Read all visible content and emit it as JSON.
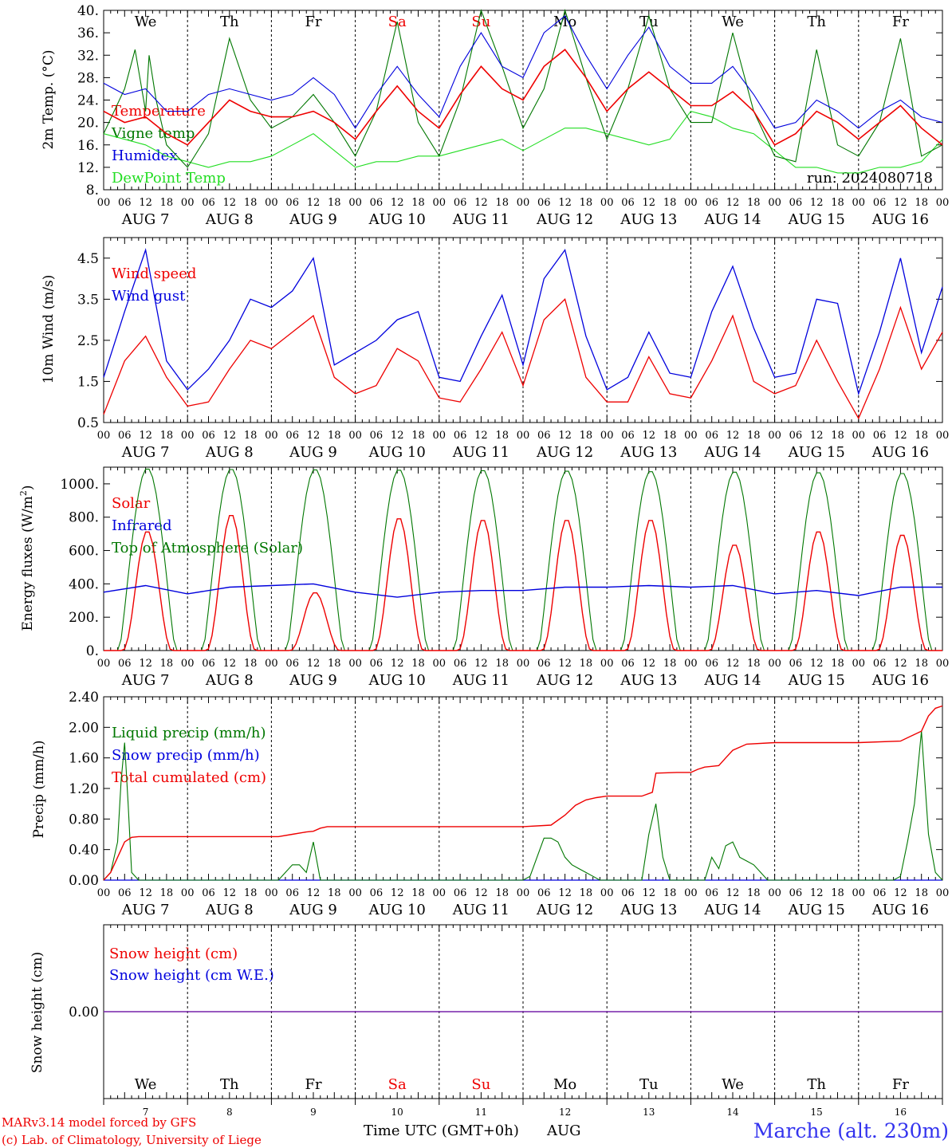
{
  "days": [
    {
      "weekday": "We",
      "label": "AUG  7",
      "num": "7",
      "weekend": false
    },
    {
      "weekday": "Th",
      "label": "AUG  8",
      "num": "8",
      "weekend": false
    },
    {
      "weekday": "Fr",
      "label": "AUG  9",
      "num": "9",
      "weekend": false
    },
    {
      "weekday": "Sa",
      "label": "AUG 10",
      "num": "10",
      "weekend": true
    },
    {
      "weekday": "Su",
      "label": "AUG 11",
      "num": "11",
      "weekend": true
    },
    {
      "weekday": "Mo",
      "label": "AUG 12",
      "num": "12",
      "weekend": false
    },
    {
      "weekday": "Tu",
      "label": "AUG 13",
      "num": "13",
      "weekend": false
    },
    {
      "weekday": "We",
      "label": "AUG 14",
      "num": "14",
      "weekend": false
    },
    {
      "weekday": "Th",
      "label": "AUG 15",
      "num": "15",
      "weekend": false
    },
    {
      "weekday": "Fr",
      "label": "AUG 16",
      "num": "16",
      "weekend": false
    }
  ],
  "hour_ticks": [
    "00",
    "06",
    "12",
    "18"
  ],
  "colors": {
    "red": "#ee0000",
    "green": "#007700",
    "blue": "#0000dd",
    "lightgreen": "#22dd22",
    "purple": "#7722aa",
    "weekend": "#ee0000"
  },
  "run_label": "run: 2024080718",
  "footer": {
    "model": "MARv3.14 model forced by GFS",
    "lab": "(c) Lab. of Climatology, University of Liege",
    "xaxis": "Time UTC (GMT+0h)",
    "month": "AUG",
    "station": "Marche (alt. 230m)"
  },
  "chart_data": [
    {
      "type": "line",
      "ylabel": "2m Temp. (°C)",
      "ylim": [
        8,
        40
      ],
      "yticks": [
        "8.",
        "12.",
        "16.",
        "20.",
        "24.",
        "28.",
        "32.",
        "36.",
        "40."
      ],
      "grid": false,
      "x_unit": "hours since AUG 7 00 UTC",
      "series": [
        {
          "name": "Temperature",
          "color": "#ee0000",
          "x": [
            0,
            6,
            12,
            18,
            24,
            30,
            36,
            42,
            48,
            54,
            60,
            66,
            72,
            78,
            84,
            90,
            96,
            102,
            108,
            114,
            120,
            126,
            132,
            138,
            144,
            150,
            156,
            162,
            168,
            174,
            180,
            186,
            192,
            198,
            204,
            210,
            216,
            222,
            228,
            234,
            240
          ],
          "y": [
            22,
            20,
            21,
            18,
            16,
            20,
            24,
            22,
            21,
            21,
            22,
            20,
            17,
            22,
            26.5,
            22,
            19,
            25,
            30,
            26,
            24,
            30,
            33,
            28,
            22,
            26,
            29,
            26,
            23,
            23,
            25.5,
            22,
            16,
            18,
            22,
            20,
            17,
            20,
            23,
            19,
            16
          ]
        },
        {
          "name": "Vigne temp",
          "color": "#007700",
          "x": [
            0,
            6,
            9,
            12,
            13,
            15,
            18,
            24,
            30,
            36,
            42,
            48,
            54,
            60,
            66,
            72,
            78,
            84,
            90,
            96,
            102,
            108,
            114,
            120,
            126,
            132,
            138,
            144,
            150,
            156,
            162,
            168,
            174,
            180,
            186,
            192,
            198,
            204,
            210,
            216,
            222,
            228,
            234,
            240
          ],
          "y": [
            18,
            26,
            33,
            22,
            32,
            24,
            16,
            12,
            18,
            35,
            24,
            19,
            21,
            25,
            20,
            14,
            22,
            38,
            20,
            14,
            24,
            40,
            30,
            19,
            26,
            40,
            28,
            17,
            26,
            39,
            26,
            20,
            20,
            36,
            22,
            14,
            13,
            33,
            16,
            14,
            20,
            35,
            14,
            16
          ]
        },
        {
          "name": "Humidex",
          "color": "#0000dd",
          "x": [
            0,
            6,
            12,
            18,
            24,
            30,
            36,
            42,
            48,
            54,
            60,
            66,
            72,
            78,
            84,
            90,
            96,
            102,
            108,
            114,
            120,
            126,
            132,
            138,
            144,
            150,
            156,
            162,
            168,
            174,
            180,
            186,
            192,
            198,
            204,
            210,
            216,
            222,
            228,
            234,
            240
          ],
          "y": [
            27,
            25,
            26,
            22,
            22,
            25,
            26,
            25,
            24,
            25,
            28,
            25,
            19,
            25,
            30,
            25,
            21,
            30,
            36,
            30,
            28,
            36,
            39,
            32,
            26,
            32,
            37,
            30,
            27,
            27,
            30,
            25,
            19,
            20,
            24,
            22,
            19,
            22,
            24,
            21,
            20
          ]
        },
        {
          "name": "DewPoint Temp",
          "color": "#22dd22",
          "x": [
            0,
            6,
            12,
            18,
            24,
            30,
            36,
            42,
            48,
            54,
            60,
            66,
            72,
            78,
            84,
            90,
            96,
            102,
            108,
            114,
            120,
            126,
            132,
            138,
            144,
            150,
            156,
            162,
            168,
            174,
            180,
            186,
            192,
            198,
            204,
            210,
            216,
            222,
            228,
            234,
            240
          ],
          "y": [
            18,
            17,
            16,
            14,
            13,
            12,
            13,
            13,
            14,
            16,
            18,
            15,
            12,
            13,
            13,
            14,
            14,
            15,
            16,
            17,
            15,
            17,
            19,
            19,
            18,
            17,
            16,
            17,
            22,
            21,
            19,
            18,
            15,
            12,
            12,
            11,
            11,
            12,
            12,
            13,
            17
          ]
        }
      ]
    },
    {
      "type": "line",
      "ylabel": "10m Wind (m/s)",
      "ylim": [
        0.5,
        5.0
      ],
      "yticks": [
        "0.5",
        "1.5",
        "2.5",
        "3.5",
        "4.5"
      ],
      "grid": false,
      "x_unit": "hours since AUG 7 00 UTC",
      "series": [
        {
          "name": "Wind speed",
          "color": "#ee0000",
          "x": [
            0,
            6,
            12,
            18,
            24,
            30,
            36,
            42,
            48,
            54,
            60,
            66,
            72,
            78,
            84,
            90,
            96,
            102,
            108,
            114,
            120,
            126,
            132,
            138,
            144,
            150,
            156,
            162,
            168,
            174,
            180,
            186,
            192,
            198,
            204,
            210,
            216,
            222,
            228,
            234,
            240
          ],
          "y": [
            0.7,
            2.0,
            2.6,
            1.6,
            0.9,
            1.0,
            1.8,
            2.5,
            2.3,
            2.7,
            3.1,
            1.6,
            1.2,
            1.4,
            2.3,
            2.0,
            1.1,
            1.0,
            1.8,
            2.7,
            1.4,
            3.0,
            3.5,
            1.6,
            1.0,
            1.0,
            2.1,
            1.2,
            1.1,
            2.0,
            3.1,
            1.5,
            1.2,
            1.4,
            2.5,
            1.5,
            0.6,
            1.8,
            3.3,
            1.8,
            2.7
          ]
        },
        {
          "name": "Wind gust",
          "color": "#0000dd",
          "x": [
            0,
            6,
            12,
            18,
            24,
            30,
            36,
            42,
            48,
            54,
            60,
            66,
            72,
            78,
            84,
            90,
            96,
            102,
            108,
            114,
            120,
            126,
            132,
            138,
            144,
            150,
            156,
            162,
            168,
            174,
            180,
            186,
            192,
            198,
            204,
            210,
            216,
            222,
            228,
            234,
            240
          ],
          "y": [
            1.6,
            3.2,
            4.7,
            2.0,
            1.3,
            1.8,
            2.5,
            3.5,
            3.3,
            3.7,
            4.5,
            1.9,
            2.2,
            2.5,
            3.0,
            3.2,
            1.6,
            1.5,
            2.6,
            3.6,
            1.9,
            4.0,
            4.7,
            2.6,
            1.3,
            1.6,
            2.7,
            1.7,
            1.6,
            3.2,
            4.3,
            2.8,
            1.6,
            1.7,
            3.5,
            3.4,
            1.2,
            2.7,
            4.5,
            2.2,
            3.8
          ]
        }
      ]
    },
    {
      "type": "line",
      "ylabel": "Energy fluxes (W/m²)",
      "ylim": [
        0,
        1100
      ],
      "yticks": [
        "0.",
        "200.",
        "400.",
        "600.",
        "800.",
        "1000."
      ],
      "grid": false,
      "x_unit": "hours since AUG 7 00 UTC",
      "series": [
        {
          "name": "Solar",
          "color": "#ee0000",
          "peak_hour": 12.5,
          "day_peaks": [
            720,
            820,
            350,
            800,
            790,
            790,
            790,
            640,
            720,
            700
          ]
        },
        {
          "name": "Infrared",
          "color": "#0000dd",
          "x": [
            0,
            12,
            24,
            36,
            48,
            60,
            72,
            84,
            96,
            108,
            120,
            132,
            144,
            156,
            168,
            180,
            192,
            204,
            216,
            228,
            240
          ],
          "y": [
            350,
            390,
            340,
            380,
            390,
            400,
            350,
            320,
            350,
            360,
            360,
            380,
            380,
            390,
            380,
            390,
            340,
            360,
            330,
            380,
            380
          ]
        },
        {
          "name": "Top of Atmosphere (Solar)",
          "color": "#007700",
          "peak_hour": 12.5,
          "day_peaks": [
            1095,
            1092,
            1090,
            1088,
            1085,
            1082,
            1079,
            1076,
            1072,
            1068
          ]
        }
      ]
    },
    {
      "type": "line",
      "ylabel": "Precip (mm/h)",
      "ylim": [
        0,
        2.4
      ],
      "yticks": [
        "0.00",
        "0.40",
        "0.80",
        "1.20",
        "1.60",
        "2.00",
        "2.40"
      ],
      "grid": false,
      "x_unit": "hours since AUG 7 00 UTC",
      "series": [
        {
          "name": "Liquid precip (mm/h)",
          "color": "#007700",
          "x": [
            0,
            2,
            4,
            5,
            6,
            7,
            8,
            10,
            12,
            50,
            52,
            54,
            56,
            58,
            60,
            62,
            64,
            66,
            68,
            70,
            72,
            120,
            122,
            124,
            126,
            128,
            130,
            132,
            134,
            136,
            138,
            140,
            142,
            144,
            154,
            156,
            158,
            160,
            162,
            164,
            166,
            168,
            172,
            174,
            176,
            178,
            180,
            182,
            184,
            186,
            188,
            190,
            192,
            226,
            228,
            230,
            232,
            234,
            236,
            238,
            240
          ],
          "y": [
            0,
            0.1,
            0.5,
            1.3,
            1.8,
            1.0,
            0.1,
            0,
            0,
            0,
            0.1,
            0.2,
            0.2,
            0.1,
            0.5,
            0,
            0,
            0,
            0,
            0,
            0,
            0,
            0.05,
            0.3,
            0.55,
            0.55,
            0.5,
            0.3,
            0.2,
            0.15,
            0.1,
            0.05,
            0,
            0,
            0,
            0.6,
            1.0,
            0.3,
            0,
            0,
            0,
            0,
            0,
            0.3,
            0.15,
            0.45,
            0.5,
            0.3,
            0.25,
            0.2,
            0.1,
            0,
            0,
            0,
            0.05,
            0.5,
            1.0,
            1.95,
            0.6,
            0.1,
            0
          ]
        },
        {
          "name": "Snow precip (mm/h)",
          "color": "#0000dd",
          "x": [
            0,
            240
          ],
          "y": [
            0,
            0
          ]
        },
        {
          "name": "Total cumulated (cm)",
          "color": "#ee0000",
          "x": [
            0,
            2,
            4,
            6,
            8,
            10,
            12,
            50,
            54,
            58,
            60,
            62,
            64,
            66,
            72,
            96,
            120,
            128,
            132,
            135,
            138,
            141,
            144,
            150,
            154,
            157,
            158,
            164,
            168,
            170,
            172,
            176,
            178,
            180,
            184,
            192,
            216,
            228,
            234,
            236,
            238,
            240
          ],
          "y": [
            0,
            0.1,
            0.3,
            0.5,
            0.56,
            0.57,
            0.57,
            0.57,
            0.6,
            0.63,
            0.64,
            0.68,
            0.7,
            0.7,
            0.7,
            0.7,
            0.7,
            0.72,
            0.85,
            0.98,
            1.05,
            1.08,
            1.1,
            1.1,
            1.1,
            1.15,
            1.4,
            1.41,
            1.41,
            1.45,
            1.48,
            1.5,
            1.6,
            1.7,
            1.78,
            1.8,
            1.8,
            1.82,
            1.95,
            2.15,
            2.25,
            2.28
          ]
        }
      ]
    },
    {
      "type": "line",
      "ylim": [
        -1,
        1
      ],
      "yticks": [
        "0.00"
      ],
      "grid": false,
      "x_unit": "hours since AUG 7 00 UTC",
      "series": [
        {
          "name": "Snow height (cm)",
          "color": "#ee0000",
          "x": [
            0,
            240
          ],
          "y": [
            0,
            0
          ]
        },
        {
          "name": "Snow height (cm W.E.)",
          "color": "#0000dd",
          "x": [
            0,
            240
          ],
          "y": [
            0,
            0
          ]
        }
      ]
    }
  ],
  "panel_titles": [
    {
      "ylabel": "2m Temp. (°C)"
    },
    {
      "ylabel": "10m Wind (m/s)"
    },
    {
      "ylabel": "Energy fluxes (W/m"
    },
    {
      "ylabel": "Precip (mm/h)"
    },
    {
      "ylabel": "Snow height (cm)"
    }
  ]
}
